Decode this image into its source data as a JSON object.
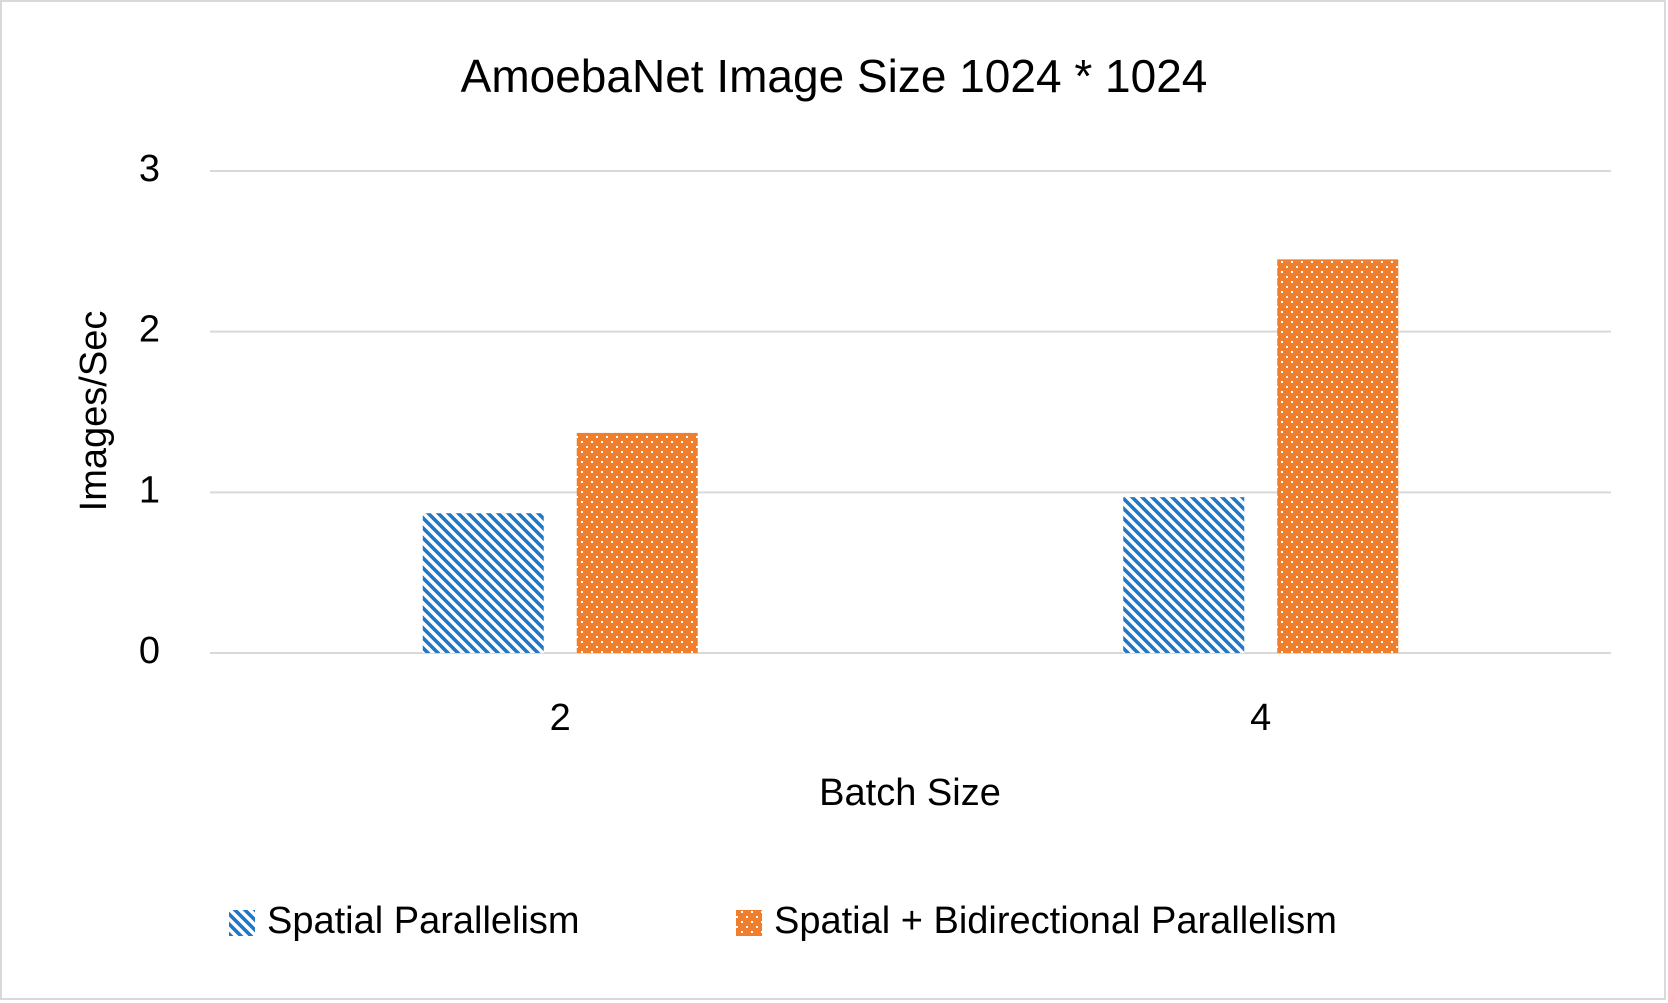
{
  "chart_data": {
    "type": "bar",
    "title": "AmoebaNet Image Size 1024 * 1024",
    "x_label": "Batch Size",
    "y_label": "Images/Sec",
    "categories": [
      "2",
      "4"
    ],
    "series": [
      {
        "name": "Spatial Parallelism",
        "color": "#1f77c8",
        "values": [
          0.87,
          0.97
        ]
      },
      {
        "name": "Spatial + Bidirectional Parallelism",
        "color": "#f07f2d",
        "values": [
          1.37,
          2.45
        ]
      }
    ],
    "ylim": [
      0,
      3
    ],
    "yticks": [
      0,
      1,
      2,
      3
    ],
    "grid": true,
    "legend": "bottom"
  }
}
